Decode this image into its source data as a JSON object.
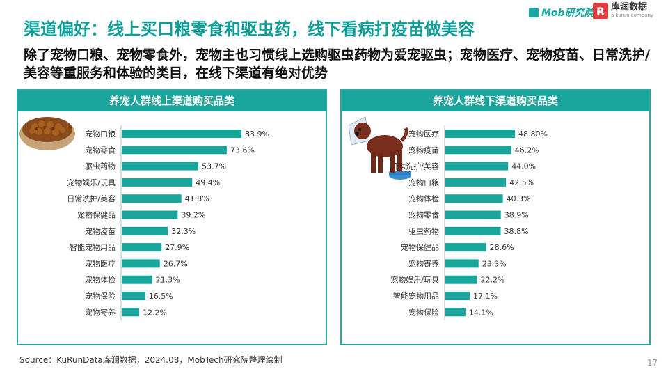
{
  "header": {
    "title": "渠道偏好：线上买口粮零食和驱虫药，线下看病打疫苗做美容",
    "subtitle": "除了宠物口粮、宠物零食外，宠物主也习惯线上选购驱虫药物为爱宠驱虫；宠物医疗、宠物疫苗、日常洗护/美容等重服务和体验的类目，在线下渠道有绝对优势"
  },
  "logos": {
    "mob": "Mob研究院",
    "kurun_badge": "R",
    "kurun_cn": "库润数据",
    "kurun_en": "a kurun company"
  },
  "colors": {
    "accent": "#1aa59c",
    "bar": "#1aa59c",
    "title": "#0f9e97",
    "border": "#2aa8a0"
  },
  "chart_data": [
    {
      "type": "bar",
      "orientation": "horizontal",
      "title": "养宠人群线上渠道购买品类",
      "categories": [
        "宠物口粮",
        "宠物零食",
        "驱虫药物",
        "宠物娱乐/玩具",
        "日常洗护/美容",
        "宠物保健品",
        "宠物疫苗",
        "智能宠物用品",
        "宠物医疗",
        "宠物体检",
        "宠物保险",
        "宠物寄养"
      ],
      "values": [
        83.9,
        73.6,
        53.7,
        49.4,
        41.8,
        39.2,
        32.3,
        27.9,
        26.7,
        21.3,
        16.5,
        12.2
      ],
      "value_labels": [
        "83.9%",
        "73.6%",
        "53.7%",
        "49.4%",
        "41.8%",
        "39.2%",
        "32.3%",
        "27.9%",
        "26.7%",
        "21.3%",
        "16.5%",
        "12.2%"
      ],
      "xlim": [
        0,
        100
      ],
      "grid": false,
      "legend": "none"
    },
    {
      "type": "bar",
      "orientation": "horizontal",
      "title": "养宠人群线下渠道购买品类",
      "categories": [
        "宠物医疗",
        "宠物疫苗",
        "日常洗护/美容",
        "宠物口粮",
        "宠物体检",
        "宠物零食",
        "驱虫药物",
        "宠物保健品",
        "宠物寄养",
        "宠物娱乐/玩具",
        "智能宠物用品",
        "宠物保险"
      ],
      "values": [
        48.8,
        46.2,
        44.0,
        42.5,
        40.3,
        38.9,
        38.8,
        28.6,
        23.3,
        22.2,
        17.1,
        14.1
      ],
      "value_labels": [
        "48.80%",
        "46.2%",
        "44.0%",
        "42.5%",
        "40.3%",
        "38.9%",
        "38.8%",
        "28.6%",
        "23.3%",
        "22.2%",
        "17.1%",
        "14.1%"
      ],
      "xlim": [
        0,
        100
      ],
      "grid": false,
      "legend": "none"
    }
  ],
  "footer": {
    "source": "Source：KuRunData库润数据，2024.08，MobTech研究院整理绘制",
    "page": "17"
  }
}
